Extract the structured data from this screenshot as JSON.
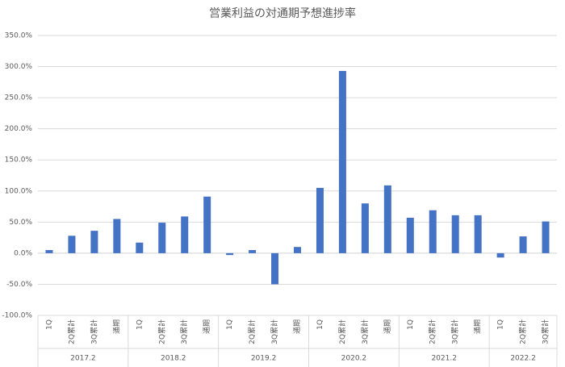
{
  "chart_data": {
    "type": "bar",
    "title": "営業利益の対通期予想進捗率",
    "color": "#4472c4",
    "grid": true,
    "ylim": [
      -100,
      350
    ],
    "yticks": [
      {
        "value": -100,
        "label": "-100.0%"
      },
      {
        "value": -50,
        "label": "-50.0%"
      },
      {
        "value": 0,
        "label": "0.0%"
      },
      {
        "value": 50,
        "label": "50.0%"
      },
      {
        "value": 100,
        "label": "100.0%"
      },
      {
        "value": 150,
        "label": "150.0%"
      },
      {
        "value": 200,
        "label": "200.0%"
      },
      {
        "value": 250,
        "label": "250.0%"
      },
      {
        "value": 300,
        "label": "300.0%"
      },
      {
        "value": 350,
        "label": "350.0%"
      }
    ],
    "groups": [
      {
        "name": "2017.2",
        "categories": [
          "1Q",
          "2Q累計",
          "3Q累計",
          "通期"
        ],
        "values": [
          5,
          28,
          36,
          55
        ]
      },
      {
        "name": "2018.2",
        "categories": [
          "1Q",
          "2Q累計",
          "3Q累計",
          "通期"
        ],
        "values": [
          17,
          49,
          59,
          91
        ]
      },
      {
        "name": "2019.2",
        "categories": [
          "1Q",
          "2Q累計",
          "3Q累計",
          "通期"
        ],
        "values": [
          -3,
          5,
          -50,
          10
        ]
      },
      {
        "name": "2020.2",
        "categories": [
          "1Q",
          "2Q累計",
          "3Q累計",
          "通期"
        ],
        "values": [
          105,
          293,
          80,
          109
        ]
      },
      {
        "name": "2021.2",
        "categories": [
          "1Q",
          "2Q累計",
          "3Q累計",
          "通期"
        ],
        "values": [
          57,
          69,
          61,
          61
        ]
      },
      {
        "name": "2022.2",
        "categories": [
          "1Q",
          "2Q累計",
          "3Q累計"
        ],
        "values": [
          -7,
          27,
          51
        ]
      }
    ]
  }
}
